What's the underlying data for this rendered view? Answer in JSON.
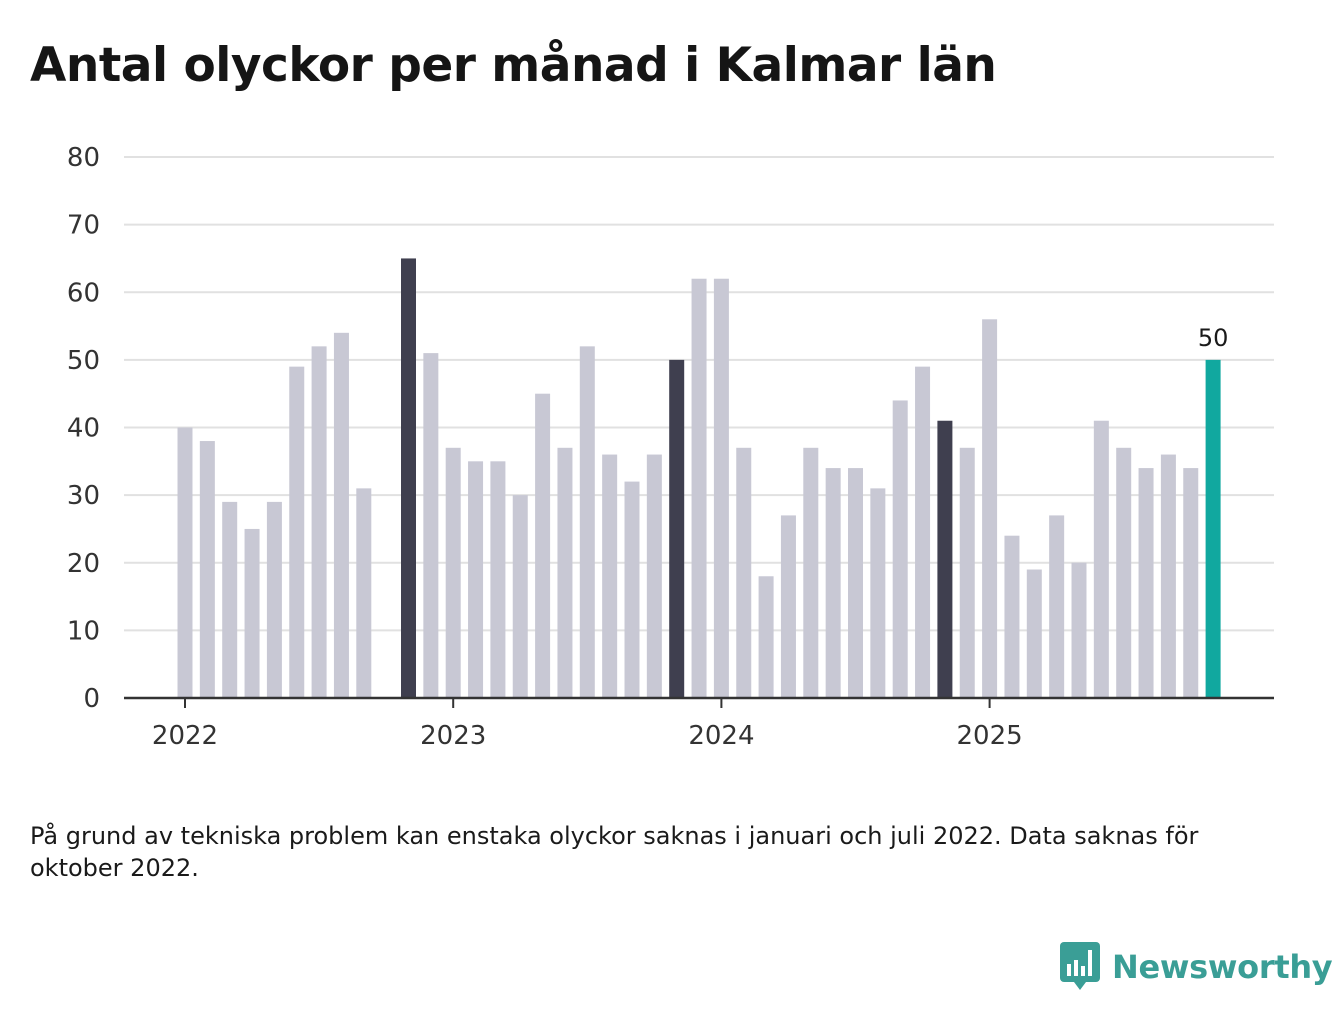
{
  "title": "Antal olyckor per månad i Kalmar län",
  "footnote": "På grund av tekniska problem kan enstaka olyckor saknas i januari och juli 2022. Data saknas för oktober 2022.",
  "brand": {
    "name": "Newsworthy",
    "color": "#3a9e96"
  },
  "colors": {
    "bar": "#c8c8d4",
    "january": "#3f3f4f",
    "latest": "#11a89f",
    "grid": "#e1e1e1",
    "axis": "#333333"
  },
  "chart_data": {
    "type": "bar",
    "title": "Antal olyckor per månad i Kalmar län",
    "xlabel": "",
    "ylabel": "",
    "ylim": [
      0,
      80
    ],
    "yticks": [
      0,
      10,
      20,
      30,
      40,
      50,
      60,
      70,
      80
    ],
    "xtick_labels": [
      {
        "label": "2022",
        "index": 0
      },
      {
        "label": "2023",
        "index": 12
      },
      {
        "label": "2024",
        "index": 24
      },
      {
        "label": "2025",
        "index": 36
      }
    ],
    "categories": [
      "2022-01",
      "2022-02",
      "2022-03",
      "2022-04",
      "2022-05",
      "2022-06",
      "2022-07",
      "2022-08",
      "2022-09",
      "2022-10",
      "2022-11",
      "2022-12",
      "2023-01",
      "2023-02",
      "2023-03",
      "2023-04",
      "2023-05",
      "2023-06",
      "2023-07",
      "2023-08",
      "2023-09",
      "2023-10",
      "2023-11",
      "2023-12",
      "2024-01",
      "2024-02",
      "2024-03",
      "2024-04",
      "2024-05",
      "2024-06",
      "2024-07",
      "2024-08",
      "2024-09",
      "2024-10",
      "2024-11",
      "2024-12",
      "2025-01",
      "2025-02",
      "2025-03",
      "2025-04",
      "2025-05",
      "2025-06",
      "2025-07",
      "2025-08",
      "2025-09",
      "2025-10",
      "2025-11",
      "2025-12"
    ],
    "values": [
      40,
      38,
      29,
      25,
      29,
      49,
      52,
      54,
      31,
      null,
      65,
      51,
      37,
      35,
      35,
      30,
      45,
      37,
      52,
      36,
      32,
      36,
      50,
      62,
      62,
      37,
      18,
      27,
      37,
      34,
      34,
      31,
      44,
      49,
      41,
      37,
      56,
      24,
      19,
      27,
      20,
      41,
      37,
      34,
      36,
      34,
      50,
      null
    ],
    "highlight_indices": [
      10,
      22,
      34
    ],
    "latest_index": 46,
    "latest_label": "50"
  }
}
